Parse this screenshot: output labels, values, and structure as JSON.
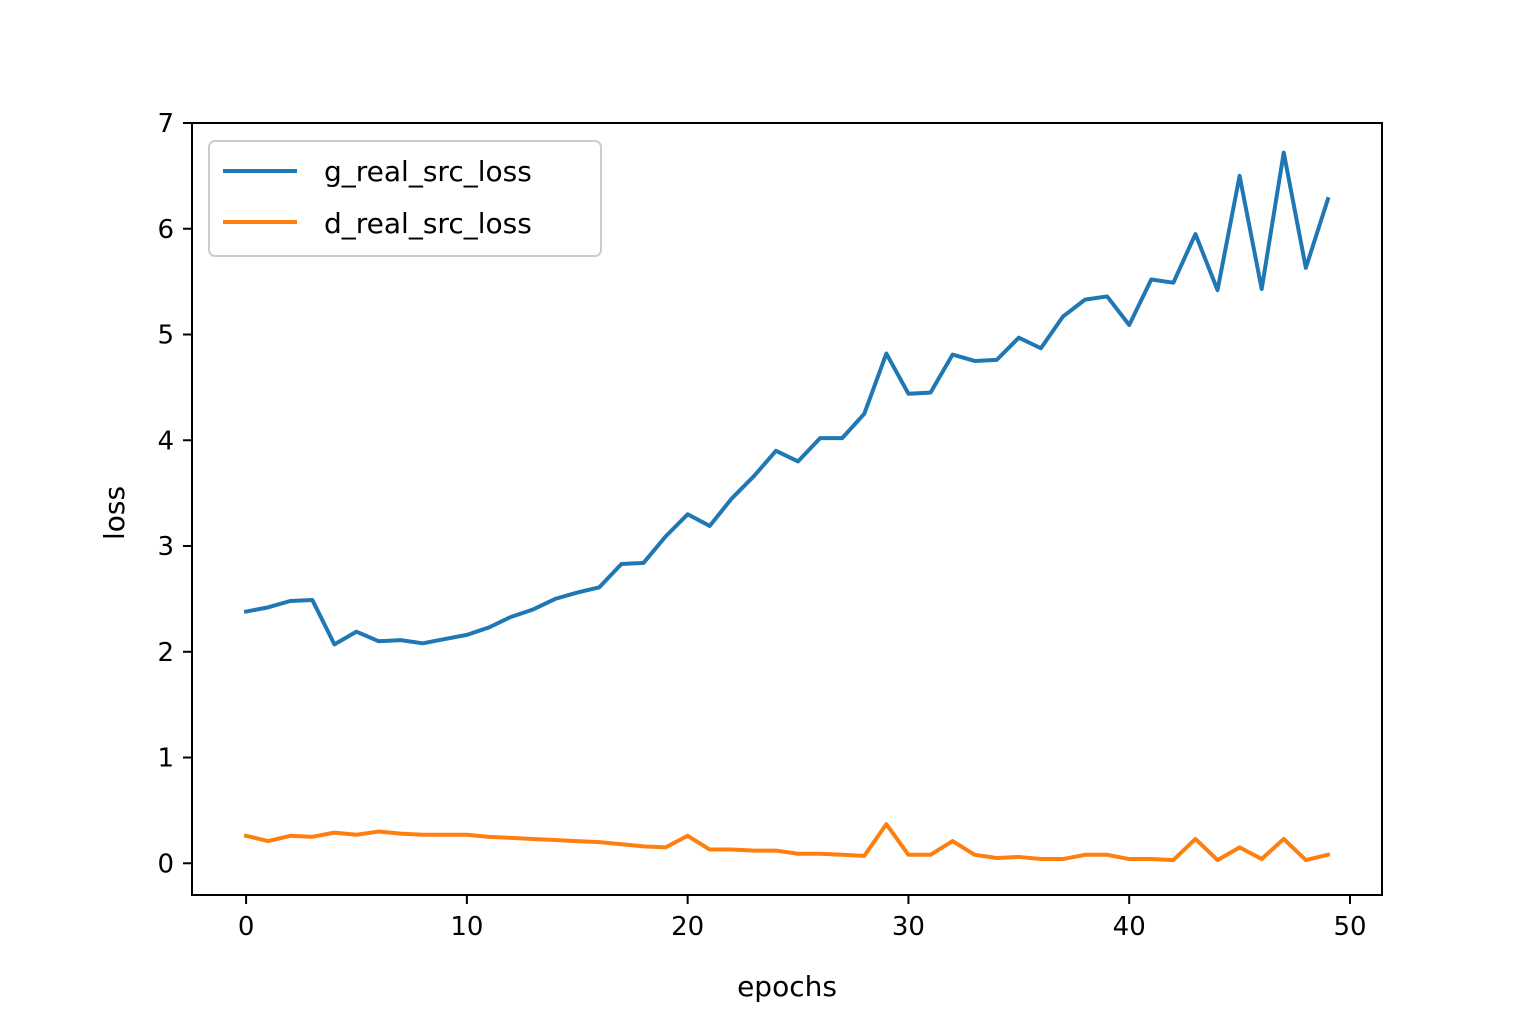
{
  "chart_data": {
    "type": "line",
    "xlabel": "epochs",
    "ylabel": "loss",
    "xlim": [
      -2.45,
      51.45
    ],
    "ylim": [
      -0.3,
      7.0
    ],
    "xticks": [
      0,
      10,
      20,
      30,
      40,
      50
    ],
    "yticks": [
      0,
      1,
      2,
      3,
      4,
      5,
      6,
      7
    ],
    "grid": false,
    "legend_position": "upper-left",
    "x": [
      0,
      1,
      2,
      3,
      4,
      5,
      6,
      7,
      8,
      9,
      10,
      11,
      12,
      13,
      14,
      15,
      16,
      17,
      18,
      19,
      20,
      21,
      22,
      23,
      24,
      25,
      26,
      27,
      28,
      29,
      30,
      31,
      32,
      33,
      34,
      35,
      36,
      37,
      38,
      39,
      40,
      41,
      42,
      43,
      44,
      45,
      46,
      47,
      48,
      49
    ],
    "series": [
      {
        "name": "g_real_src_loss",
        "color": "#1f77b4",
        "values": [
          2.38,
          2.42,
          2.48,
          2.49,
          2.07,
          2.19,
          2.1,
          2.11,
          2.08,
          2.12,
          2.16,
          2.23,
          2.33,
          2.4,
          2.5,
          2.56,
          2.61,
          2.83,
          2.84,
          3.09,
          3.3,
          3.19,
          3.45,
          3.66,
          3.9,
          3.8,
          4.02,
          4.02,
          4.25,
          4.82,
          4.44,
          4.45,
          4.81,
          4.75,
          4.76,
          4.97,
          4.87,
          5.17,
          5.33,
          5.36,
          5.09,
          5.52,
          5.49,
          5.95,
          5.42,
          6.5,
          5.43,
          6.72,
          5.63,
          6.28
        ]
      },
      {
        "name": "d_real_src_loss",
        "color": "#ff7f0e",
        "values": [
          0.26,
          0.21,
          0.26,
          0.25,
          0.29,
          0.27,
          0.3,
          0.28,
          0.27,
          0.27,
          0.27,
          0.25,
          0.24,
          0.23,
          0.22,
          0.21,
          0.2,
          0.18,
          0.16,
          0.15,
          0.26,
          0.13,
          0.13,
          0.12,
          0.12,
          0.09,
          0.09,
          0.08,
          0.07,
          0.37,
          0.08,
          0.08,
          0.21,
          0.08,
          0.05,
          0.06,
          0.04,
          0.04,
          0.08,
          0.08,
          0.04,
          0.04,
          0.03,
          0.23,
          0.03,
          0.15,
          0.04,
          0.23,
          0.03,
          0.08
        ]
      }
    ]
  }
}
